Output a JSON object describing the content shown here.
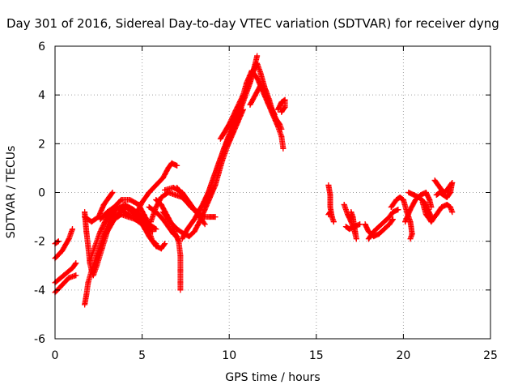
{
  "chart_data": {
    "type": "scatter",
    "title": "Day 301 of 2016, Sidereal Day-to-day VTEC variation (SDTVAR) for receiver dyng",
    "xlabel": "GPS time / hours",
    "ylabel": "SDTVAR / TECUs",
    "xlim": [
      0,
      25
    ],
    "ylim": [
      -6,
      6
    ],
    "x_ticks": [
      0,
      5,
      10,
      15,
      20,
      25
    ],
    "y_ticks": [
      -6,
      -4,
      -2,
      0,
      2,
      4,
      6
    ],
    "x_tick_labels": [
      "0",
      "5",
      "10",
      "15",
      "20",
      "25"
    ],
    "y_tick_labels": [
      "-6",
      "-4",
      "-2",
      "0",
      "2",
      "4",
      "6"
    ],
    "grid": true,
    "marker": "+",
    "color": "#ff0000",
    "tracks": [
      {
        "points": [
          [
            0.0,
            -2.1
          ],
          [
            0.2,
            -2.0
          ]
        ]
      },
      {
        "points": [
          [
            0.0,
            -2.7
          ],
          [
            0.4,
            -2.4
          ],
          [
            0.8,
            -1.9
          ],
          [
            1.0,
            -1.5
          ]
        ]
      },
      {
        "points": [
          [
            0.0,
            -3.7
          ],
          [
            0.5,
            -3.4
          ],
          [
            1.0,
            -3.1
          ],
          [
            1.2,
            -2.9
          ]
        ]
      },
      {
        "points": [
          [
            0.0,
            -4.1
          ],
          [
            0.4,
            -3.8
          ],
          [
            0.8,
            -3.5
          ],
          [
            1.2,
            -3.4
          ]
        ]
      },
      {
        "points": [
          [
            1.7,
            -0.8
          ],
          [
            1.8,
            -1.6
          ],
          [
            1.9,
            -2.2
          ],
          [
            2.0,
            -2.9
          ],
          [
            2.1,
            -3.2
          ],
          [
            2.2,
            -3.4
          ],
          [
            2.4,
            -3.0
          ],
          [
            2.7,
            -2.3
          ],
          [
            3.0,
            -1.6
          ],
          [
            3.4,
            -1.1
          ],
          [
            3.8,
            -0.9
          ],
          [
            4.2,
            -1.0
          ],
          [
            4.6,
            -1.1
          ],
          [
            5.0,
            -1.3
          ],
          [
            5.4,
            -1.8
          ],
          [
            5.8,
            -2.2
          ],
          [
            6.1,
            -2.3
          ],
          [
            6.3,
            -2.1
          ]
        ]
      },
      {
        "points": [
          [
            1.7,
            -4.6
          ],
          [
            1.8,
            -4.2
          ],
          [
            1.9,
            -3.7
          ],
          [
            2.1,
            -3.2
          ],
          [
            2.4,
            -2.6
          ],
          [
            2.8,
            -1.8
          ],
          [
            3.2,
            -1.3
          ],
          [
            3.6,
            -0.9
          ],
          [
            4.1,
            -0.6
          ],
          [
            4.6,
            -0.9
          ],
          [
            5.0,
            -1.2
          ],
          [
            5.4,
            -1.6
          ],
          [
            5.6,
            -2.0
          ],
          [
            5.8,
            -2.1
          ]
        ]
      },
      {
        "points": [
          [
            2.0,
            -2.8
          ],
          [
            2.3,
            -2.2
          ],
          [
            2.6,
            -1.6
          ],
          [
            3.0,
            -1.0
          ],
          [
            3.4,
            -0.6
          ],
          [
            3.8,
            -0.3
          ],
          [
            4.3,
            -0.3
          ],
          [
            4.8,
            -0.5
          ],
          [
            5.1,
            -0.9
          ],
          [
            5.4,
            -1.3
          ],
          [
            5.6,
            -1.6
          ]
        ]
      },
      {
        "points": [
          [
            2.2,
            -3.3
          ],
          [
            2.5,
            -2.5
          ],
          [
            2.8,
            -1.8
          ],
          [
            3.1,
            -1.2
          ],
          [
            3.5,
            -0.7
          ],
          [
            4.0,
            -0.5
          ],
          [
            4.5,
            -0.7
          ],
          [
            5.0,
            -1.0
          ],
          [
            5.3,
            -1.4
          ]
        ]
      },
      {
        "points": [
          [
            1.7,
            -1.0
          ],
          [
            2.1,
            -1.2
          ],
          [
            2.5,
            -1.0
          ],
          [
            2.8,
            -0.5
          ],
          [
            3.1,
            -0.2
          ],
          [
            3.3,
            0.0
          ]
        ]
      },
      {
        "points": [
          [
            2.6,
            -1.1
          ],
          [
            3.0,
            -0.8
          ],
          [
            3.4,
            -0.6
          ],
          [
            3.8,
            -0.7
          ],
          [
            4.2,
            -0.9
          ],
          [
            4.6,
            -1.0
          ],
          [
            5.0,
            -1.1
          ],
          [
            5.4,
            -1.3
          ],
          [
            5.8,
            -1.5
          ]
        ]
      },
      {
        "points": [
          [
            4.6,
            -1.0
          ],
          [
            5.0,
            -0.4
          ],
          [
            5.4,
            0.0
          ],
          [
            5.8,
            0.3
          ],
          [
            6.2,
            0.6
          ],
          [
            6.5,
            1.0
          ],
          [
            6.7,
            1.2
          ],
          [
            7.0,
            1.1
          ]
        ]
      },
      {
        "points": [
          [
            5.5,
            -1.2
          ],
          [
            5.8,
            -0.6
          ],
          [
            6.1,
            -0.2
          ],
          [
            6.5,
            0.0
          ],
          [
            6.9,
            -0.1
          ],
          [
            7.3,
            -0.2
          ],
          [
            7.7,
            -0.5
          ],
          [
            8.1,
            -0.8
          ],
          [
            8.5,
            -1.0
          ],
          [
            8.9,
            -1.0
          ],
          [
            9.2,
            -1.0
          ]
        ]
      },
      {
        "points": [
          [
            5.4,
            -0.6
          ],
          [
            5.8,
            -0.8
          ],
          [
            6.2,
            -1.1
          ],
          [
            6.5,
            -1.4
          ],
          [
            6.8,
            -1.7
          ],
          [
            7.0,
            -1.8
          ]
        ]
      },
      {
        "points": [
          [
            5.8,
            -0.3
          ],
          [
            6.1,
            -0.5
          ],
          [
            6.4,
            -0.9
          ],
          [
            6.7,
            -1.3
          ],
          [
            6.9,
            -1.7
          ],
          [
            7.1,
            -2.0
          ],
          [
            7.2,
            -2.6
          ],
          [
            7.2,
            -3.2
          ],
          [
            7.2,
            -3.7
          ],
          [
            7.2,
            -4.0
          ]
        ]
      },
      {
        "points": [
          [
            6.3,
            0.1
          ],
          [
            6.8,
            0.2
          ],
          [
            7.3,
            0.0
          ],
          [
            7.7,
            -0.4
          ],
          [
            8.0,
            -0.7
          ],
          [
            8.3,
            -1.0
          ],
          [
            8.6,
            -1.3
          ]
        ]
      },
      {
        "points": [
          [
            6.2,
            -0.8
          ],
          [
            6.6,
            -1.2
          ],
          [
            7.0,
            -1.5
          ],
          [
            7.4,
            -1.7
          ],
          [
            7.7,
            -1.8
          ],
          [
            8.0,
            -1.6
          ],
          [
            8.3,
            -1.2
          ],
          [
            8.6,
            -0.7
          ],
          [
            8.9,
            -0.2
          ],
          [
            9.2,
            0.3
          ],
          [
            9.4,
            0.8
          ],
          [
            9.6,
            1.3
          ],
          [
            9.9,
            1.9
          ],
          [
            10.2,
            2.4
          ],
          [
            10.5,
            2.9
          ],
          [
            10.8,
            3.4
          ]
        ]
      },
      {
        "points": [
          [
            7.0,
            0.2
          ],
          [
            7.4,
            -0.2
          ],
          [
            7.8,
            -0.6
          ],
          [
            8.2,
            -0.8
          ],
          [
            8.6,
            -0.4
          ],
          [
            8.9,
            0.2
          ],
          [
            9.2,
            0.8
          ],
          [
            9.5,
            1.4
          ],
          [
            9.8,
            2.0
          ],
          [
            10.1,
            2.6
          ],
          [
            10.4,
            3.1
          ],
          [
            10.7,
            3.6
          ],
          [
            11.0,
            4.2
          ],
          [
            11.3,
            4.8
          ],
          [
            11.5,
            5.3
          ],
          [
            11.6,
            5.6
          ]
        ]
      },
      {
        "points": [
          [
            7.3,
            -1.9
          ],
          [
            7.6,
            -1.5
          ],
          [
            8.0,
            -1.1
          ],
          [
            8.4,
            -0.6
          ],
          [
            8.8,
            0.0
          ],
          [
            9.1,
            0.6
          ],
          [
            9.4,
            1.2
          ],
          [
            9.7,
            1.8
          ],
          [
            10.0,
            2.3
          ],
          [
            10.3,
            2.8
          ],
          [
            10.6,
            3.3
          ],
          [
            10.9,
            3.9
          ],
          [
            11.2,
            4.5
          ],
          [
            11.4,
            5.0
          ],
          [
            11.6,
            5.3
          ],
          [
            11.8,
            4.9
          ],
          [
            12.0,
            4.4
          ],
          [
            12.2,
            3.9
          ],
          [
            12.4,
            3.5
          ],
          [
            12.6,
            3.2
          ]
        ]
      },
      {
        "points": [
          [
            9.5,
            2.2
          ],
          [
            10.0,
            2.8
          ],
          [
            10.4,
            3.4
          ],
          [
            10.8,
            4.0
          ],
          [
            11.0,
            4.5
          ],
          [
            11.3,
            5.0
          ],
          [
            11.6,
            4.7
          ],
          [
            11.9,
            4.2
          ],
          [
            12.2,
            3.7
          ],
          [
            12.5,
            3.2
          ],
          [
            12.8,
            2.7
          ],
          [
            13.0,
            2.3
          ],
          [
            13.1,
            1.8
          ]
        ]
      },
      {
        "points": [
          [
            11.2,
            3.6
          ],
          [
            11.5,
            4.0
          ],
          [
            11.8,
            4.4
          ],
          [
            12.1,
            4.2
          ],
          [
            12.3,
            3.8
          ],
          [
            12.5,
            3.3
          ],
          [
            12.7,
            3.0
          ],
          [
            12.9,
            2.8
          ],
          [
            13.0,
            2.6
          ]
        ]
      },
      {
        "points": [
          [
            12.8,
            3.4
          ],
          [
            13.0,
            3.7
          ],
          [
            13.2,
            3.8
          ],
          [
            13.2,
            3.5
          ],
          [
            13.0,
            3.3
          ]
        ]
      },
      {
        "points": [
          [
            15.7,
            0.3
          ],
          [
            15.8,
            -0.1
          ],
          [
            15.8,
            -0.6
          ],
          [
            15.9,
            -1.0
          ],
          [
            16.0,
            -1.2
          ],
          [
            15.8,
            -0.8
          ],
          [
            15.7,
            -0.9
          ]
        ]
      },
      {
        "points": [
          [
            16.6,
            -0.5
          ],
          [
            16.8,
            -0.9
          ],
          [
            17.0,
            -1.2
          ],
          [
            17.2,
            -1.6
          ],
          [
            17.3,
            -1.9
          ],
          [
            17.1,
            -1.0
          ],
          [
            17.0,
            -0.8
          ]
        ]
      },
      {
        "points": [
          [
            16.7,
            -1.4
          ],
          [
            16.9,
            -1.5
          ],
          [
            17.2,
            -1.4
          ],
          [
            17.5,
            -1.3
          ]
        ]
      },
      {
        "points": [
          [
            17.8,
            -1.3
          ],
          [
            18.0,
            -1.6
          ],
          [
            18.3,
            -1.8
          ],
          [
            18.6,
            -1.7
          ],
          [
            18.9,
            -1.5
          ],
          [
            19.2,
            -1.3
          ],
          [
            19.4,
            -1.1
          ]
        ]
      },
      {
        "points": [
          [
            18.0,
            -1.9
          ],
          [
            18.3,
            -1.6
          ],
          [
            18.6,
            -1.4
          ],
          [
            18.9,
            -1.2
          ],
          [
            19.2,
            -1.0
          ],
          [
            19.4,
            -0.8
          ],
          [
            19.7,
            -0.7
          ]
        ]
      },
      {
        "points": [
          [
            19.3,
            -0.6
          ],
          [
            19.6,
            -0.3
          ],
          [
            19.8,
            -0.2
          ],
          [
            20.0,
            -0.3
          ],
          [
            20.2,
            -0.8
          ],
          [
            20.4,
            -1.2
          ],
          [
            20.5,
            -1.7
          ],
          [
            20.4,
            -1.9
          ]
        ]
      },
      {
        "points": [
          [
            20.1,
            -1.2
          ],
          [
            20.4,
            -0.7
          ],
          [
            20.7,
            -0.3
          ],
          [
            21.0,
            -0.1
          ],
          [
            21.3,
            0.0
          ],
          [
            21.5,
            -0.3
          ],
          [
            21.6,
            -0.6
          ]
        ]
      },
      {
        "points": [
          [
            20.3,
            0.0
          ],
          [
            20.6,
            -0.1
          ],
          [
            20.9,
            -0.2
          ],
          [
            21.2,
            -0.4
          ],
          [
            21.4,
            -0.7
          ],
          [
            21.6,
            -1.0
          ]
        ]
      },
      {
        "points": [
          [
            21.1,
            -0.4
          ],
          [
            21.3,
            -0.9
          ],
          [
            21.6,
            -1.2
          ],
          [
            21.9,
            -0.9
          ],
          [
            22.2,
            -0.6
          ],
          [
            22.5,
            -0.5
          ],
          [
            22.7,
            -0.6
          ],
          [
            22.8,
            -0.8
          ]
        ]
      },
      {
        "points": [
          [
            21.8,
            0.5
          ],
          [
            22.0,
            0.3
          ],
          [
            22.2,
            0.1
          ],
          [
            22.4,
            0.0
          ],
          [
            22.6,
            0.2
          ],
          [
            22.8,
            0.4
          ],
          [
            22.7,
            0.0
          ],
          [
            22.5,
            -0.2
          ],
          [
            22.3,
            -0.1
          ],
          [
            22.1,
            0.0
          ],
          [
            21.9,
            -0.1
          ]
        ]
      }
    ]
  }
}
